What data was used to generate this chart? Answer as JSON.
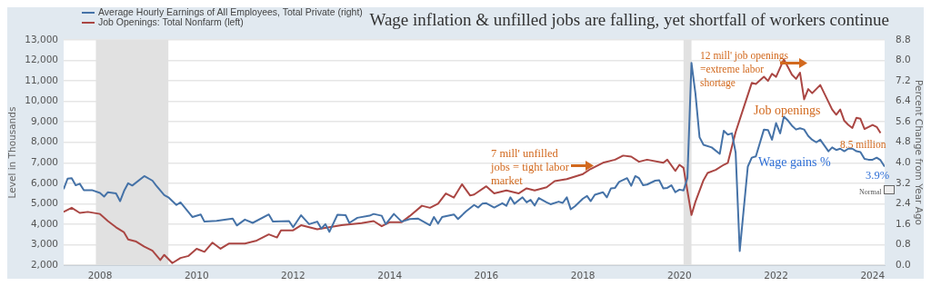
{
  "chart_data": {
    "type": "line",
    "title": "Wage inflation & unfilled jobs are falling, yet shortfall of workers continue",
    "ylabel": "Level in Thousands",
    "y2label": "Percent Change from Year Ago",
    "legend": "top left",
    "grid": "y",
    "marker": "none",
    "line_style": "solid",
    "xlim": [
      "2007-04",
      "2024-04"
    ],
    "xticks": [
      "2008",
      "2010",
      "2012",
      "2014",
      "2016",
      "2018",
      "2020",
      "2022",
      "2024"
    ],
    "ylim": [
      2000,
      13000
    ],
    "yticks": [
      {
        "value": 2000,
        "label": "2,000"
      },
      {
        "value": 3000,
        "label": "3,000"
      },
      {
        "value": 4000,
        "label": "4,000"
      },
      {
        "value": 5000,
        "label": "5,000"
      },
      {
        "value": 6000,
        "label": "6,000"
      },
      {
        "value": 7000,
        "label": "7,000"
      },
      {
        "value": 8000,
        "label": "8,000"
      },
      {
        "value": 9000,
        "label": "9,000"
      },
      {
        "value": 10000,
        "label": "10,000"
      },
      {
        "value": 11000,
        "label": "11,000"
      },
      {
        "value": 12000,
        "label": "12,000"
      },
      {
        "value": 13000,
        "label": "13,000"
      }
    ],
    "y2lim": [
      0,
      8.8
    ],
    "y2ticks": [
      {
        "value": 0,
        "label": "0.0"
      },
      0.8,
      1.6,
      2.4,
      3.2,
      {
        "value": 4,
        "label": "4.0"
      },
      4.8,
      5.6,
      6.4,
      7.2,
      {
        "value": 8,
        "label": "8.0"
      },
      8.8
    ],
    "bands": [
      {
        "axis": "x",
        "from": "2007-12",
        "to": "2009-06",
        "color": "#e1e1e1"
      },
      {
        "axis": "x",
        "from": "2020-02",
        "to": "2020-04",
        "color": "#e1e1e1"
      }
    ],
    "series": [
      {
        "name": "Average Hourly Earnings of All Employees, Total Private (right)",
        "color": "#4572a7",
        "axis": "y2",
        "x": [
          "2007-04",
          "2007-05",
          "2007-06",
          "2007-07",
          "2007-08",
          "2007-09",
          "2007-11",
          "2008-01",
          "2008-02",
          "2008-03",
          "2008-05",
          "2008-06",
          "2008-07",
          "2008-08",
          "2008-09",
          "2008-12",
          "2009-02",
          "2009-03",
          "2009-05",
          "2009-06",
          "2009-08",
          "2009-09",
          "2009-12",
          "2010-02",
          "2010-03",
          "2010-06",
          "2010-10",
          "2010-11",
          "2011-01",
          "2011-03",
          "2011-07",
          "2011-08",
          "2011-12",
          "2012-01",
          "2012-03",
          "2012-05",
          "2012-07",
          "2012-08",
          "2012-09",
          "2012-10",
          "2012-12",
          "2013-02",
          "2013-03",
          "2013-05",
          "2013-08",
          "2013-09",
          "2013-11",
          "2013-12",
          "2014-02",
          "2014-04",
          "2014-06",
          "2014-08",
          "2014-11",
          "2014-12",
          "2015-01",
          "2015-02",
          "2015-05",
          "2015-06",
          "2015-08",
          "2015-10",
          "2015-11",
          "2015-12",
          "2016-01",
          "2016-03",
          "2016-05",
          "2016-06",
          "2016-07",
          "2016-08",
          "2016-10",
          "2016-11",
          "2016-12",
          "2017-01",
          "2017-02",
          "2017-04",
          "2017-05",
          "2017-07",
          "2017-08",
          "2017-09",
          "2017-10",
          "2017-11",
          "2018-01",
          "2018-02",
          "2018-03",
          "2018-04",
          "2018-06",
          "2018-07",
          "2018-08",
          "2018-09",
          "2018-10",
          "2018-12",
          "2019-01",
          "2019-02",
          "2019-03",
          "2019-04",
          "2019-05",
          "2019-07",
          "2019-08",
          "2019-09",
          "2019-10",
          "2019-11",
          "2019-12",
          "2020-01",
          "2020-02",
          "2020-03",
          "2020-04",
          "2020-05",
          "2020-06",
          "2020-07",
          "2020-09",
          "2020-11",
          "2020-12",
          "2021-01",
          "2021-02",
          "2021-03",
          "2021-04",
          "2021-06",
          "2021-07",
          "2021-08",
          "2021-10",
          "2021-11",
          "2021-12",
          "2022-01",
          "2022-02",
          "2022-03",
          "2022-04",
          "2022-05",
          "2022-06",
          "2022-07",
          "2022-08",
          "2022-09",
          "2022-10",
          "2022-11",
          "2022-12",
          "2023-02",
          "2023-03",
          "2023-04",
          "2023-05",
          "2023-06",
          "2023-07",
          "2023-08",
          "2023-09",
          "2023-10",
          "2023-11",
          "2023-12",
          "2024-01",
          "2024-02",
          "2024-03",
          "2024-04"
        ],
        "values": [
          2.97,
          3.38,
          3.4,
          3.12,
          3.18,
          2.93,
          2.93,
          2.82,
          2.68,
          2.85,
          2.8,
          2.5,
          2.9,
          3.2,
          3.11,
          3.48,
          3.3,
          3.11,
          2.74,
          2.65,
          2.35,
          2.45,
          1.88,
          1.98,
          1.7,
          1.73,
          1.82,
          1.55,
          1.78,
          1.65,
          1.98,
          1.7,
          1.72,
          1.48,
          1.95,
          1.6,
          1.7,
          1.43,
          1.6,
          1.3,
          1.97,
          1.95,
          1.65,
          1.85,
          1.93,
          2.0,
          1.93,
          1.6,
          2.0,
          1.7,
          1.8,
          1.82,
          1.56,
          1.88,
          1.62,
          1.88,
          1.98,
          1.8,
          2.1,
          2.35,
          2.25,
          2.4,
          2.42,
          2.25,
          2.42,
          2.32,
          2.65,
          2.4,
          2.65,
          2.45,
          2.55,
          2.33,
          2.62,
          2.45,
          2.38,
          2.48,
          2.43,
          2.65,
          2.18,
          2.3,
          2.6,
          2.7,
          2.5,
          2.75,
          2.85,
          2.65,
          3.0,
          3.02,
          3.25,
          3.4,
          3.1,
          3.48,
          3.4,
          3.12,
          3.15,
          3.3,
          3.32,
          3.0,
          3.02,
          3.12,
          2.85,
          2.95,
          2.92,
          3.4,
          7.9,
          6.7,
          5.0,
          4.7,
          4.6,
          4.35,
          5.25,
          5.1,
          5.15,
          4.4,
          0.55,
          3.85,
          4.2,
          4.25,
          5.3,
          5.28,
          4.9,
          5.55,
          5.15,
          5.8,
          5.65,
          5.45,
          5.3,
          5.35,
          5.3,
          5.05,
          4.9,
          4.8,
          4.9,
          4.45,
          4.6,
          4.5,
          4.55,
          4.45,
          4.55,
          4.55,
          4.45,
          4.42,
          4.15,
          4.12,
          4.12,
          4.2,
          4.1,
          3.85
        ]
      },
      {
        "name": "Job Openings: Total Nonfarm (left)",
        "color": "#aa4643",
        "x": [
          "2007-04",
          "2007-06",
          "2007-08",
          "2007-10",
          "2008-01",
          "2008-03",
          "2008-05",
          "2008-07",
          "2008-08",
          "2008-10",
          "2008-12",
          "2009-02",
          "2009-04",
          "2009-05",
          "2009-07",
          "2009-09",
          "2009-11",
          "2010-01",
          "2010-03",
          "2010-05",
          "2010-07",
          "2010-09",
          "2010-11",
          "2011-01",
          "2011-04",
          "2011-07",
          "2011-09",
          "2011-10",
          "2012-01",
          "2012-03",
          "2012-05",
          "2012-07",
          "2012-10",
          "2013-01",
          "2013-06",
          "2013-09",
          "2013-11",
          "2014-01",
          "2014-04",
          "2014-06",
          "2014-09",
          "2014-11",
          "2015-01",
          "2015-03",
          "2015-05",
          "2015-07",
          "2015-09",
          "2015-10",
          "2016-01",
          "2016-03",
          "2016-06",
          "2016-09",
          "2016-11",
          "2017-01",
          "2017-04",
          "2017-06",
          "2017-09",
          "2018-01",
          "2018-03",
          "2018-06",
          "2018-09",
          "2018-11",
          "2019-01",
          "2019-03",
          "2019-05",
          "2019-09",
          "2019-10",
          "2019-12",
          "2020-01",
          "2020-02",
          "2020-04",
          "2020-05",
          "2020-07",
          "2020-08",
          "2020-10",
          "2020-12",
          "2021-01",
          "2021-03",
          "2021-05",
          "2021-07",
          "2021-08",
          "2021-10",
          "2021-11",
          "2021-12",
          "2022-01",
          "2022-03",
          "2022-05",
          "2022-06",
          "2022-07",
          "2022-08",
          "2022-09",
          "2022-10",
          "2022-12",
          "2023-03",
          "2023-04",
          "2023-05",
          "2023-06",
          "2023-07",
          "2023-08",
          "2023-09",
          "2023-10",
          "2023-11",
          "2024-01",
          "2024-02",
          "2024-03"
        ],
        "values": [
          4600,
          4800,
          4550,
          4600,
          4500,
          4150,
          3850,
          3600,
          3250,
          3150,
          2900,
          2700,
          2250,
          2500,
          2100,
          2350,
          2450,
          2800,
          2650,
          3100,
          2800,
          3050,
          3050,
          3050,
          3200,
          3500,
          3350,
          3700,
          3700,
          3950,
          3850,
          3750,
          3850,
          3950,
          4050,
          4150,
          3900,
          4100,
          4100,
          4400,
          4900,
          4800,
          5000,
          5500,
          5300,
          5950,
          5400,
          5450,
          5850,
          5500,
          5650,
          5500,
          5750,
          5650,
          5800,
          6100,
          6200,
          6450,
          6700,
          7000,
          7150,
          7350,
          7300,
          7050,
          7150,
          7000,
          7150,
          6600,
          6900,
          6750,
          4450,
          5100,
          6150,
          6500,
          6650,
          6900,
          7000,
          8500,
          9700,
          10900,
          10850,
          11200,
          11000,
          11350,
          11200,
          12050,
          11300,
          11100,
          11400,
          10100,
          10600,
          10400,
          10800,
          9600,
          9350,
          9600,
          9050,
          8850,
          8700,
          9200,
          9150,
          8650,
          8850,
          8750,
          8450
        ]
      }
    ],
    "annotations": [
      "7 mill' unfilled jobs = tight labor market",
      "12 mill' job openings =extreme labor shortage",
      "Job openings",
      "8.5 million",
      "Wage gains %",
      "3.9%",
      "Normal"
    ]
  }
}
